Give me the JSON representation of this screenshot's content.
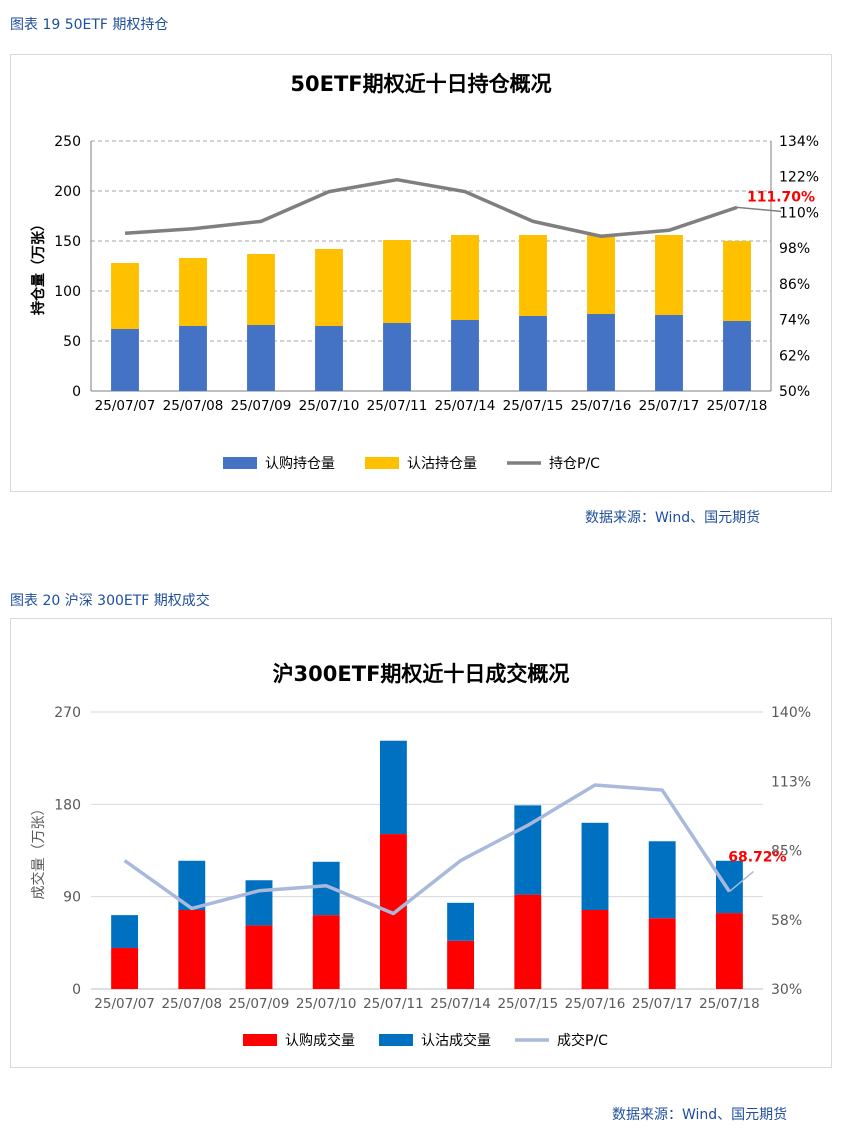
{
  "figure1": {
    "caption": "图表 19  50ETF 期权持仓",
    "source": "数据来源：Wind、国元期货"
  },
  "figure2": {
    "caption": "图表 20  沪深 300ETF 期权成交",
    "source": "数据来源：Wind、国元期货"
  },
  "colors": {
    "call_blue": "#4472c4",
    "put_yellow": "#ffc000",
    "pc_gray": "#7f7f7f",
    "call_red": "#ff0000",
    "put_blue": "#0070c0",
    "pc_lightblue": "#a9b9dc",
    "caption_blue": "#1f4e9c",
    "annotation_red": "#ff0000"
  },
  "chart_data": [
    {
      "type": "bar",
      "stacked": true,
      "title": "50ETF期权近十日持仓概况",
      "ylabel": "持仓量（万张）",
      "ylim": [
        0,
        250
      ],
      "yticks": [
        "250",
        "200",
        "150",
        "100",
        "50",
        "0"
      ],
      "y2lim": [
        0.5,
        1.34
      ],
      "y2ticks": [
        "134%",
        "122%",
        "110%",
        "98%",
        "86%",
        "74%",
        "62%",
        "50%"
      ],
      "grid": true,
      "legend_position": "bottom",
      "categories": [
        "25/07/07",
        "25/07/08",
        "25/07/09",
        "25/07/10",
        "25/07/11",
        "25/07/14",
        "25/07/15",
        "25/07/16",
        "25/07/17",
        "25/07/18"
      ],
      "series": [
        {
          "name": "认购持仓量",
          "kind": "bar",
          "color": "#4472c4",
          "values": [
            62,
            65,
            66,
            65,
            68,
            71,
            75,
            77,
            76,
            70
          ]
        },
        {
          "name": "认沽持仓量",
          "kind": "bar",
          "color": "#ffc000",
          "values": [
            66,
            68,
            71,
            77,
            83,
            85,
            81,
            79,
            80,
            80
          ]
        },
        {
          "name": "持仓P/C",
          "kind": "line",
          "axis": "right",
          "color": "#7f7f7f",
          "values": [
            1.03,
            1.045,
            1.07,
            1.17,
            1.21,
            1.17,
            1.07,
            1.02,
            1.04,
            1.117
          ]
        }
      ],
      "annotation": "111.70%"
    },
    {
      "type": "bar",
      "stacked": true,
      "title": "沪300ETF期权近十日成交概况",
      "ylabel": "成交量（万张）",
      "ylim": [
        0,
        270
      ],
      "yticks": [
        "270",
        "180",
        "90",
        "0"
      ],
      "y2lim": [
        0.3,
        1.4
      ],
      "y2ticks": [
        "140%",
        "113%",
        "85%",
        "58%",
        "30%"
      ],
      "grid": true,
      "legend_position": "bottom",
      "categories": [
        "25/07/07",
        "25/07/08",
        "25/07/09",
        "25/07/10",
        "25/07/11",
        "25/07/14",
        "25/07/15",
        "25/07/16",
        "25/07/17",
        "25/07/18"
      ],
      "series": [
        {
          "name": "认购成交量",
          "kind": "bar",
          "color": "#ff0000",
          "values": [
            40,
            77,
            62,
            72,
            151,
            47,
            92,
            77,
            69,
            74
          ]
        },
        {
          "name": "认沽成交量",
          "kind": "bar",
          "color": "#0070c0",
          "values": [
            32,
            48,
            44,
            52,
            91,
            37,
            87,
            85,
            75,
            51
          ]
        },
        {
          "name": "成交P/C",
          "kind": "line",
          "axis": "right",
          "color": "#a9b9dc",
          "values": [
            0.81,
            0.62,
            0.69,
            0.71,
            0.6,
            0.81,
            0.95,
            1.11,
            1.09,
            0.687
          ]
        }
      ],
      "annotation": "68.72%"
    }
  ]
}
